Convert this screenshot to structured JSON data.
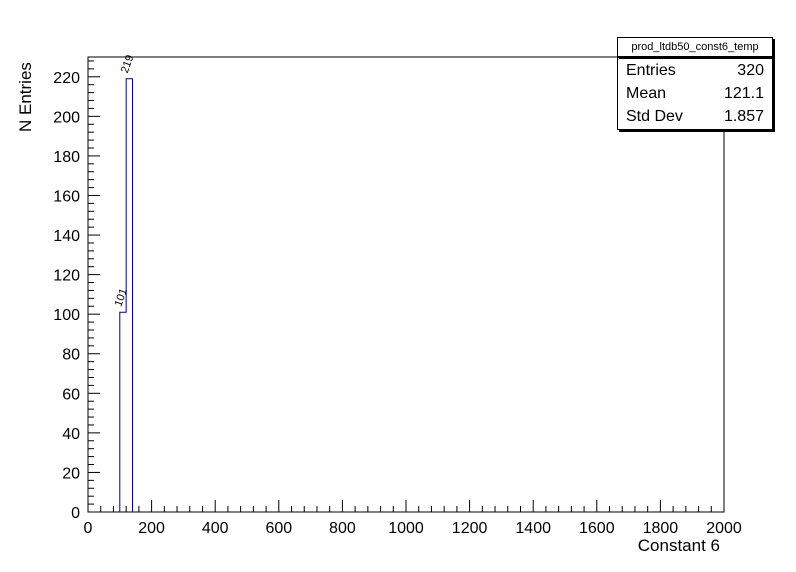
{
  "title_box": "prod_ltdb50_const6_temp",
  "stats": {
    "rows": [
      {
        "label": "Entries",
        "value": "320"
      },
      {
        "label": "Mean",
        "value": "121.1"
      },
      {
        "label": "Std Dev",
        "value": "1.857"
      }
    ]
  },
  "chart_data": {
    "type": "bar",
    "title": "prod_ltdb50_const6_temp",
    "xlabel": "Constant 6",
    "ylabel": "N Entries",
    "xlim": [
      0,
      2000
    ],
    "ylim": [
      0,
      230
    ],
    "x_major_tick_step": 200,
    "x_minor_per_major": 5,
    "y_major_tick_step": 20,
    "y_minor_per_major": 5,
    "grid": false,
    "legend_position": "top-right",
    "bar_color": "#00008b",
    "bins": [
      {
        "x_low": 100,
        "x_high": 120,
        "count": 101,
        "label": "101"
      },
      {
        "x_low": 120,
        "x_high": 140,
        "count": 219,
        "label": "219"
      }
    ],
    "stats": {
      "entries": 320,
      "mean": 121.1,
      "std_dev": 1.857
    }
  }
}
